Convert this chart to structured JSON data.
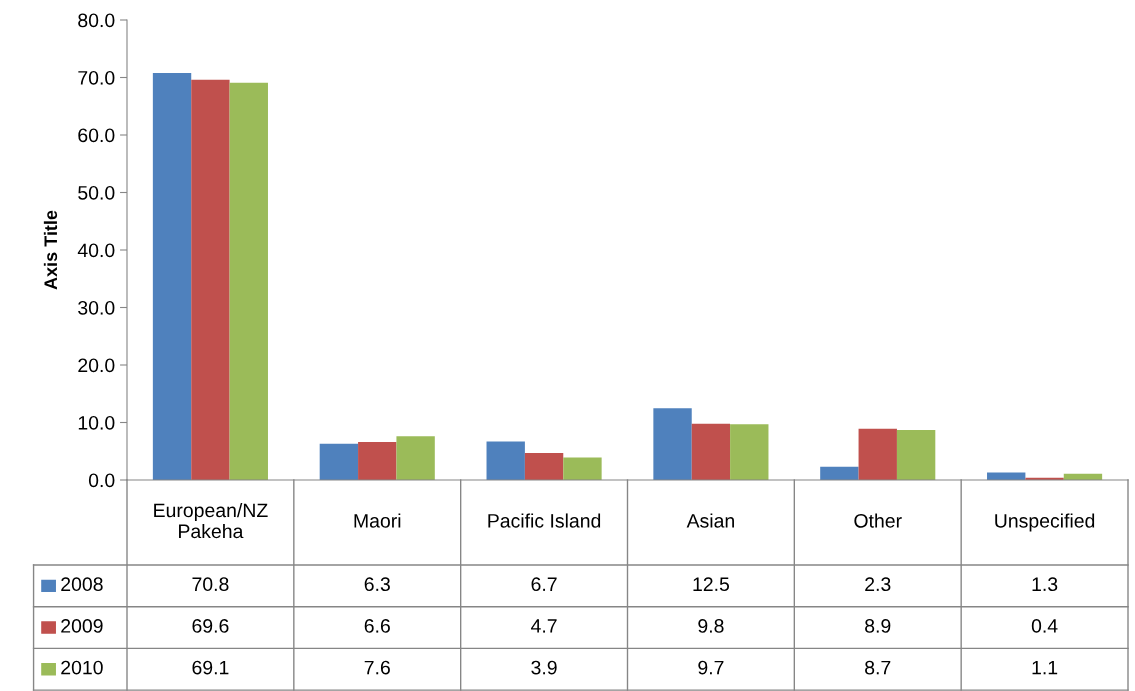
{
  "chart_data": {
    "type": "bar",
    "ylabel": "Axis Title",
    "categories": [
      "European/NZ\nPakeha",
      "Maori",
      "Pacific Island",
      "Asian",
      "Other",
      "Unspecified"
    ],
    "series": [
      {
        "name": "2008",
        "color": "#4f81bd",
        "values": [
          70.8,
          6.3,
          6.7,
          12.5,
          2.3,
          1.3
        ]
      },
      {
        "name": "2009",
        "color": "#c0504d",
        "values": [
          69.6,
          6.6,
          4.7,
          9.8,
          8.9,
          0.4
        ]
      },
      {
        "name": "2010",
        "color": "#9bbb59",
        "values": [
          69.1,
          7.6,
          3.9,
          9.7,
          8.7,
          1.1
        ]
      }
    ],
    "ylim": [
      0,
      80
    ],
    "yticks": [
      {
        "value": 0,
        "label": "0.0"
      },
      {
        "value": 10,
        "label": "10.0"
      },
      {
        "value": 20,
        "label": "20.0"
      },
      {
        "value": 30,
        "label": "30.0"
      },
      {
        "value": 40,
        "label": "40.0"
      },
      {
        "value": 50,
        "label": "50.0"
      },
      {
        "value": 60,
        "label": "60.0"
      },
      {
        "value": 70,
        "label": "70.0"
      },
      {
        "value": 80,
        "label": "80.0"
      }
    ],
    "data_labels": true,
    "legend": "bottom",
    "grid": false
  }
}
